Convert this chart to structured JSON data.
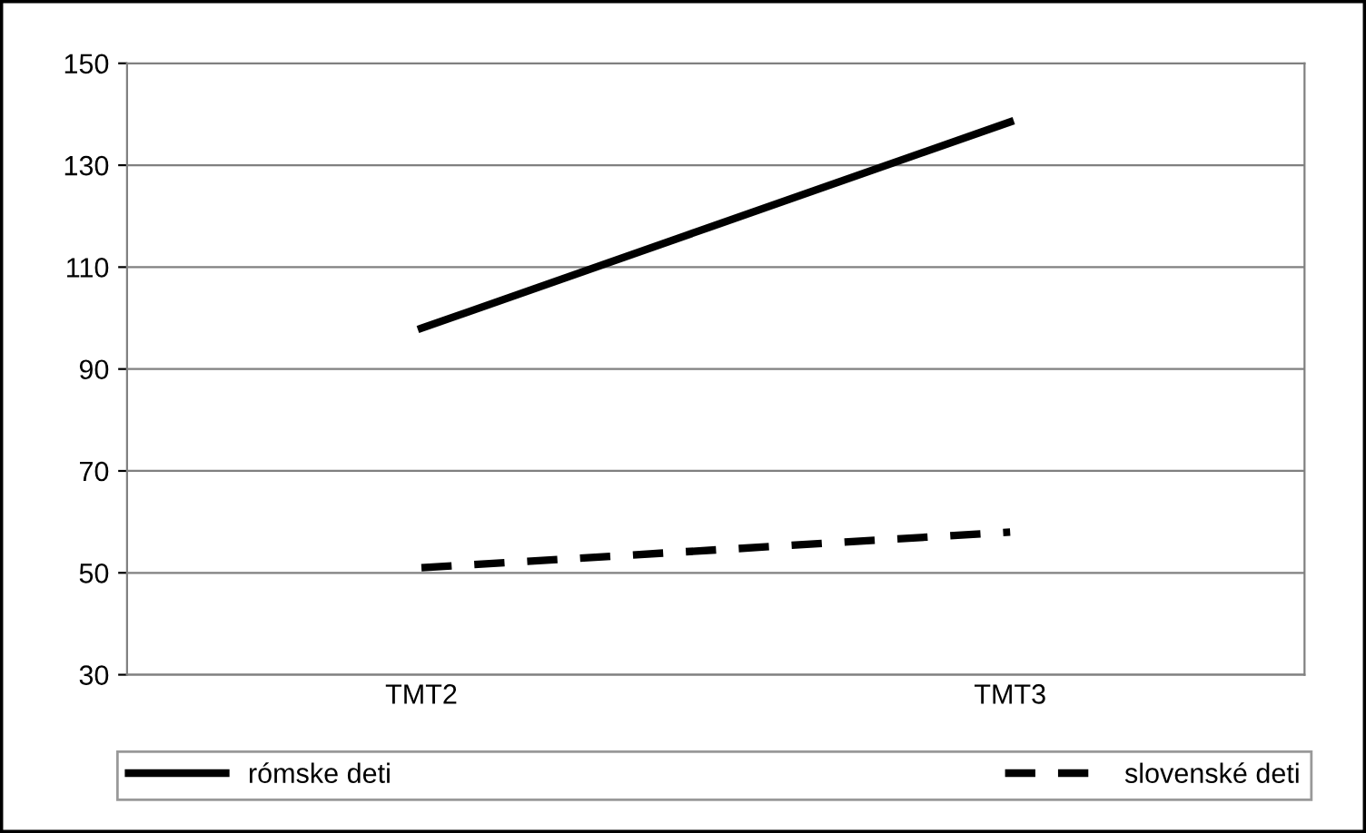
{
  "chart_data": {
    "type": "line",
    "categories": [
      "TMT2",
      "TMT3"
    ],
    "series": [
      {
        "name": "rómske deti",
        "color": "#000000",
        "values": [
          98,
          138.5
        ],
        "line_style": "solid"
      },
      {
        "name": "slovenské deti",
        "color": "#000000",
        "values": [
          51,
          58
        ],
        "line_style": "dashed"
      }
    ],
    "ylim": [
      30,
      150
    ],
    "yticks": [
      30,
      50,
      70,
      90,
      110,
      130,
      150
    ],
    "grid": "y",
    "legend": "bottom",
    "marker": "none"
  }
}
